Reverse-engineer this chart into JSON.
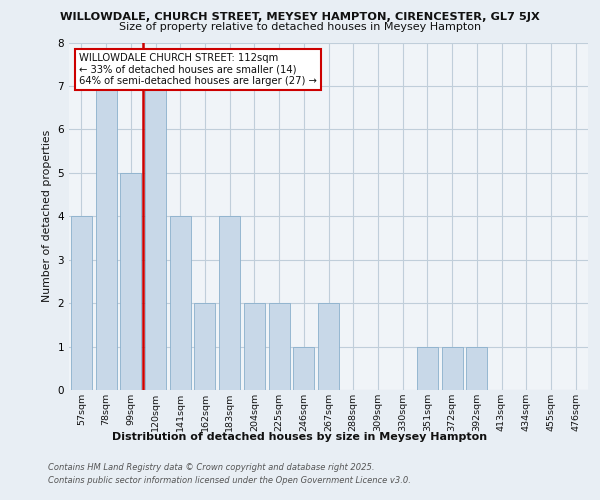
{
  "title1": "WILLOWDALE, CHURCH STREET, MEYSEY HAMPTON, CIRENCESTER, GL7 5JX",
  "title2": "Size of property relative to detached houses in Meysey Hampton",
  "xlabel": "Distribution of detached houses by size in Meysey Hampton",
  "ylabel": "Number of detached properties",
  "categories": [
    "57sqm",
    "78sqm",
    "99sqm",
    "120sqm",
    "141sqm",
    "162sqm",
    "183sqm",
    "204sqm",
    "225sqm",
    "246sqm",
    "267sqm",
    "288sqm",
    "309sqm",
    "330sqm",
    "351sqm",
    "372sqm",
    "392sqm",
    "413sqm",
    "434sqm",
    "455sqm",
    "476sqm"
  ],
  "values": [
    4,
    7,
    5,
    7,
    4,
    2,
    4,
    2,
    2,
    1,
    2,
    0,
    0,
    0,
    1,
    1,
    1,
    0,
    0,
    0,
    0
  ],
  "bar_color": "#c8d8e8",
  "bar_edge_color": "#8ab0cc",
  "vline_color": "#cc0000",
  "vline_index": 2,
  "annotation_text": "WILLOWDALE CHURCH STREET: 112sqm\n← 33% of detached houses are smaller (14)\n64% of semi-detached houses are larger (27) →",
  "annotation_box_color": "#ffffff",
  "annotation_border_color": "#cc0000",
  "ylim": [
    0,
    8
  ],
  "yticks": [
    0,
    1,
    2,
    3,
    4,
    5,
    6,
    7,
    8
  ],
  "footer1": "Contains HM Land Registry data © Crown copyright and database right 2025.",
  "footer2": "Contains public sector information licensed under the Open Government Licence v3.0.",
  "bg_color": "#e8eef4",
  "plot_bg_color": "#f0f4f8",
  "grid_color": "#c0ceda"
}
